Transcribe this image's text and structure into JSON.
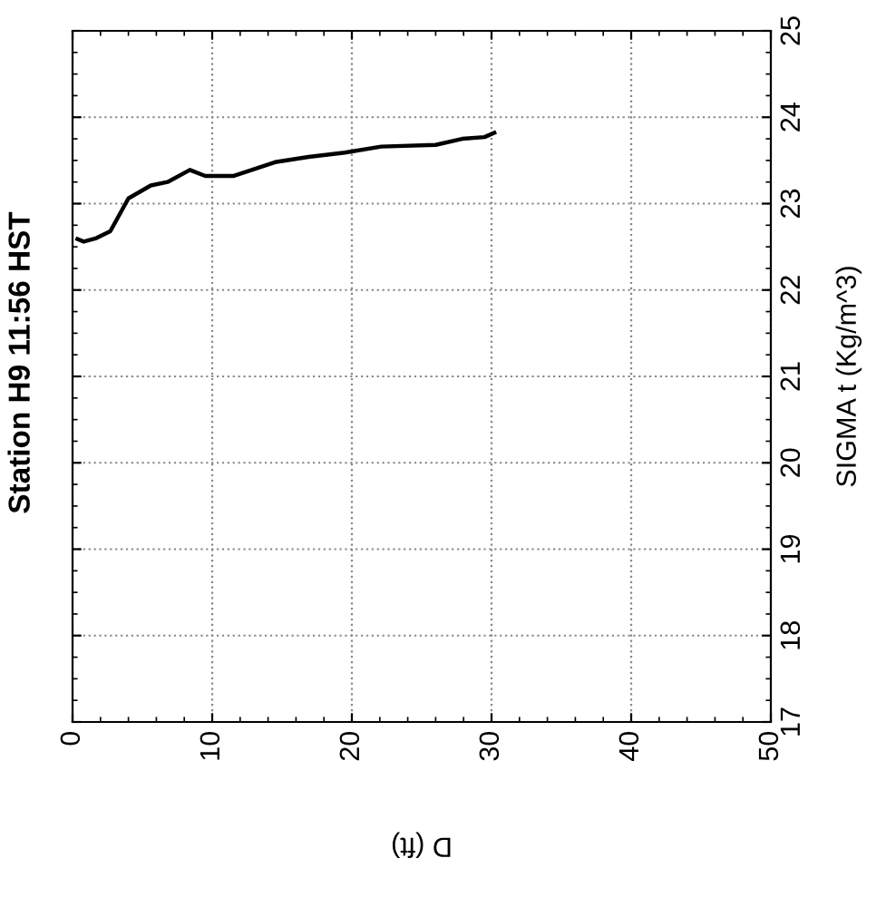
{
  "chart_data": {
    "type": "line",
    "title": "Station H9 11:56 HST",
    "xlabel": "D (ft)",
    "y2label": "SIGMA t (Kg/m^3)",
    "series": [
      {
        "color": "#000000",
        "axis": "y2",
        "x": [
          0.35,
          0.8,
          1.7,
          2.7,
          4.0,
          5.6,
          6.8,
          8.4,
          9.5,
          11.5,
          14.5,
          16.9,
          19.5,
          22.1,
          26.0,
          27.9,
          29.5,
          30.2
        ],
        "values": [
          22.59,
          22.56,
          22.6,
          22.68,
          23.06,
          23.21,
          23.25,
          23.39,
          23.32,
          23.32,
          23.48,
          23.54,
          23.59,
          23.66,
          23.68,
          23.75,
          23.77,
          23.82
        ]
      }
    ],
    "xlim": [
      0,
      50
    ],
    "xticks": [
      0,
      10,
      20,
      30,
      40,
      50
    ],
    "y2lim": [
      17,
      25
    ],
    "y2ticks": [
      17,
      18,
      19,
      20,
      21,
      22,
      23,
      24,
      25
    ],
    "grid": true,
    "line_style": "solid",
    "marker": "none"
  }
}
